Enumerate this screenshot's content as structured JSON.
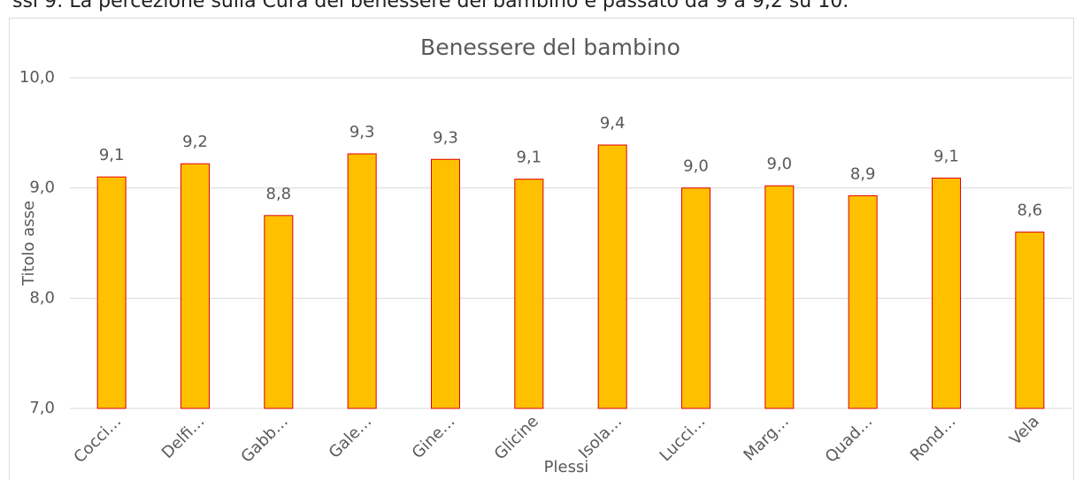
{
  "header": {
    "text": "ssi 9: La percezione sulla Cura del benessere del bambino è passato da 9 a 9,2 su 10."
  },
  "chart_data": {
    "type": "bar",
    "title": "Benessere del bambino",
    "x_label": "Plessi",
    "y_label": "Titolo asse",
    "categories": [
      "Cocci…",
      "Delfi…",
      "Gabb…",
      "Gale…",
      "Gine…",
      "Glicine",
      "Isola…",
      "Lucci…",
      "Marg…",
      "Quad…",
      "Rond…",
      "Vela"
    ],
    "values": [
      9.1,
      9.22,
      8.75,
      9.31,
      9.26,
      9.08,
      9.39,
      9.0,
      9.02,
      8.93,
      9.09,
      8.6
    ],
    "value_labels": [
      "9,1",
      "9,2",
      "8,8",
      "9,3",
      "9,3",
      "9,1",
      "9,4",
      "9,0",
      "9,0",
      "8,9",
      "9,1",
      "8,6"
    ],
    "color": "#ffc000",
    "edge_color": "#e00000",
    "ylim": [
      7,
      10
    ],
    "yticks": [
      {
        "value": 7,
        "label": "7,0"
      },
      {
        "value": 8,
        "label": "8,0"
      },
      {
        "value": 9,
        "label": "9,0"
      },
      {
        "value": 10,
        "label": "10,0"
      }
    ],
    "grid": true
  }
}
